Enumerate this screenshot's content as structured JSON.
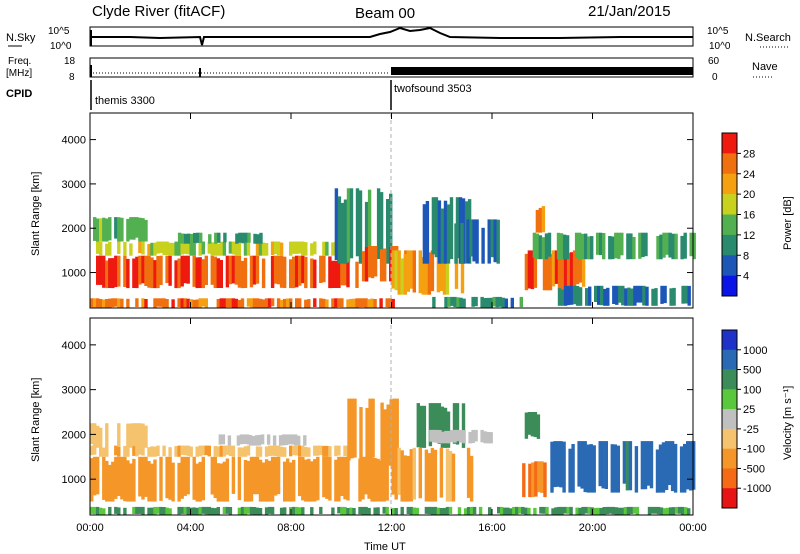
{
  "header": {
    "station": "Clyde River (fitACF)",
    "beam": "Beam 00",
    "date": "21/Jan/2015"
  },
  "top_panels": {
    "nsky_label": "N.Sky",
    "nsky_ticks": [
      "10^5",
      "10^0"
    ],
    "nsearch_label": "N.Search",
    "nsearch_ticks": [
      "10^5",
      "10^0"
    ],
    "freq_label": "Freq.",
    "freq_unit": "[MHz]",
    "freq_ticks": [
      "18",
      "8"
    ],
    "nave_label": "Nave",
    "nave_ticks": [
      "60",
      "0"
    ],
    "cpid_label": "CPID",
    "cpid_segments": [
      {
        "name": "themis 3300",
        "start_hour": 0,
        "end_hour": 12
      },
      {
        "name": "twofsound 3503",
        "start_hour": 12,
        "end_hour": 24
      }
    ]
  },
  "chart_data": [
    {
      "type": "heatmap",
      "title": "",
      "xlabel": "",
      "ylabel": "Slant Range [km]",
      "xlim": [
        0,
        24
      ],
      "ylim": [
        200,
        4600
      ],
      "x_ticks": [
        "00:00",
        "04:00",
        "08:00",
        "12:00",
        "16:00",
        "20:00",
        "00:00"
      ],
      "y_ticks": [
        "1000",
        "2000",
        "3000",
        "4000"
      ],
      "colorbar": {
        "label": "Power [dB]",
        "ticks": [
          "28",
          "24",
          "20",
          "16",
          "12",
          "8",
          "4"
        ],
        "colors": [
          "#0a14e6",
          "#1c57b8",
          "#2a8a6e",
          "#52b050",
          "#c8d21e",
          "#f5a010",
          "#f07010",
          "#ee1a10"
        ]
      },
      "regions": [
        {
          "t0": 0.0,
          "t1": 10.7,
          "r0": 650,
          "r1": 1380,
          "value": 28
        },
        {
          "t0": 0.0,
          "t1": 10.5,
          "r0": 1380,
          "r1": 1700,
          "value": 18
        },
        {
          "t0": 0.0,
          "t1": 2.2,
          "r0": 1700,
          "r1": 2250,
          "value": 14
        },
        {
          "t0": 3.5,
          "t1": 6.8,
          "r0": 1650,
          "r1": 1900,
          "value": 12
        },
        {
          "t0": 9.5,
          "t1": 12.2,
          "r0": 1200,
          "r1": 2900,
          "value": 10
        },
        {
          "t0": 10.7,
          "t1": 12.6,
          "r0": 800,
          "r1": 1600,
          "value": 26
        },
        {
          "t0": 12.0,
          "t1": 14.8,
          "r0": 500,
          "r1": 1500,
          "value": 22
        },
        {
          "t0": 13.0,
          "t1": 15.2,
          "r0": 1200,
          "r1": 2700,
          "value": 8
        },
        {
          "t0": 13.5,
          "t1": 17.2,
          "r0": 200,
          "r1": 450,
          "value": 10
        },
        {
          "t0": 14.5,
          "t1": 16.4,
          "r0": 1200,
          "r1": 2200,
          "value": 6
        },
        {
          "t0": 17.3,
          "t1": 19.8,
          "r0": 600,
          "r1": 1500,
          "value": 26
        },
        {
          "t0": 17.5,
          "t1": 24.0,
          "r0": 1300,
          "r1": 1900,
          "value": 12
        },
        {
          "t0": 18.5,
          "t1": 24.0,
          "r0": 250,
          "r1": 700,
          "value": 8
        },
        {
          "t0": 17.5,
          "t1": 18.0,
          "r0": 1900,
          "r1": 2500,
          "value": 24
        },
        {
          "t0": 0.0,
          "t1": 12.0,
          "r0": 200,
          "r1": 420,
          "value": 26
        }
      ]
    },
    {
      "type": "heatmap",
      "title": "",
      "xlabel": "Time UT",
      "ylabel": "Slant Range [km]",
      "xlim": [
        0,
        24
      ],
      "ylim": [
        200,
        4600
      ],
      "x_ticks": [
        "00:00",
        "04:00",
        "08:00",
        "12:00",
        "16:00",
        "20:00",
        "00:00"
      ],
      "y_ticks": [
        "1000",
        "2000",
        "3000",
        "4000"
      ],
      "colorbar": {
        "label": "Velocity [m s⁻¹]",
        "ticks": [
          "1000",
          "500",
          "100",
          "25",
          "-25",
          "-100",
          "-500",
          "-1000"
        ],
        "colors": [
          "#1e32c8",
          "#2a6ab4",
          "#3c8c5a",
          "#5ac83c",
          "#c0c0c0",
          "#f5c26e",
          "#f59628",
          "#f56a14",
          "#e61414"
        ]
      },
      "regions": [
        {
          "t0": 0.0,
          "t1": 12.2,
          "r0": 500,
          "r1": 1500,
          "value": -300
        },
        {
          "t0": 0.0,
          "t1": 10.5,
          "r0": 1500,
          "r1": 1750,
          "value": -80
        },
        {
          "t0": 0.0,
          "t1": 2.2,
          "r0": 1700,
          "r1": 2250,
          "value": -60
        },
        {
          "t0": 5.0,
          "t1": 8.5,
          "r0": 1750,
          "r1": 2000,
          "value": 0
        },
        {
          "t0": 10.0,
          "t1": 12.2,
          "r0": 1300,
          "r1": 2800,
          "value": -200
        },
        {
          "t0": 12.0,
          "t1": 15.2,
          "r0": 500,
          "r1": 1700,
          "value": -120
        },
        {
          "t0": 13.0,
          "t1": 15.0,
          "r0": 1700,
          "r1": 2700,
          "value": 300
        },
        {
          "t0": 13.5,
          "t1": 16.0,
          "r0": 1800,
          "r1": 2100,
          "value": 0
        },
        {
          "t0": 0.0,
          "t1": 24.0,
          "r0": 200,
          "r1": 380,
          "value": 120
        },
        {
          "t0": 17.2,
          "t1": 18.2,
          "r0": 600,
          "r1": 1400,
          "value": -400
        },
        {
          "t0": 18.2,
          "t1": 24.0,
          "r0": 700,
          "r1": 1850,
          "value": 700
        },
        {
          "t0": 17.3,
          "t1": 18.0,
          "r0": 1900,
          "r1": 2500,
          "value": 200
        }
      ]
    }
  ]
}
